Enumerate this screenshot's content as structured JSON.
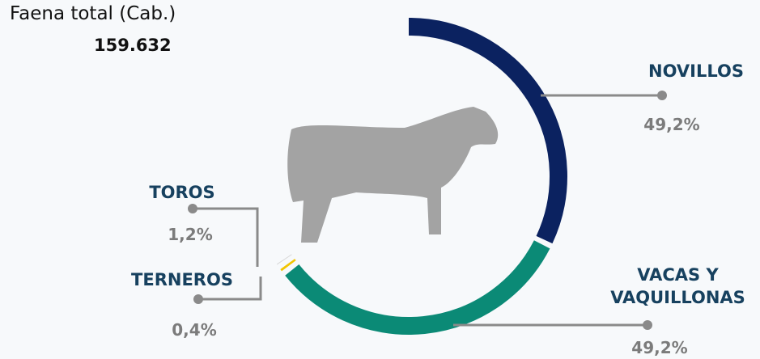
{
  "chart_data": {
    "type": "donut",
    "title": "Faena total (Cab.)",
    "subtitle": "159.632",
    "categories": [
      "NOVILLOS",
      "VACAS Y VAQUILLONAS",
      "TOROS",
      "TERNEROS"
    ],
    "values": [
      49.2,
      49.2,
      1.2,
      0.4
    ],
    "value_labels": [
      "49,2%",
      "49,2%",
      "1,2%",
      "0,4%"
    ],
    "colors": [
      "#0b2260",
      "#0b8a76",
      "#f2c500",
      "#d6d6d6"
    ]
  }
}
